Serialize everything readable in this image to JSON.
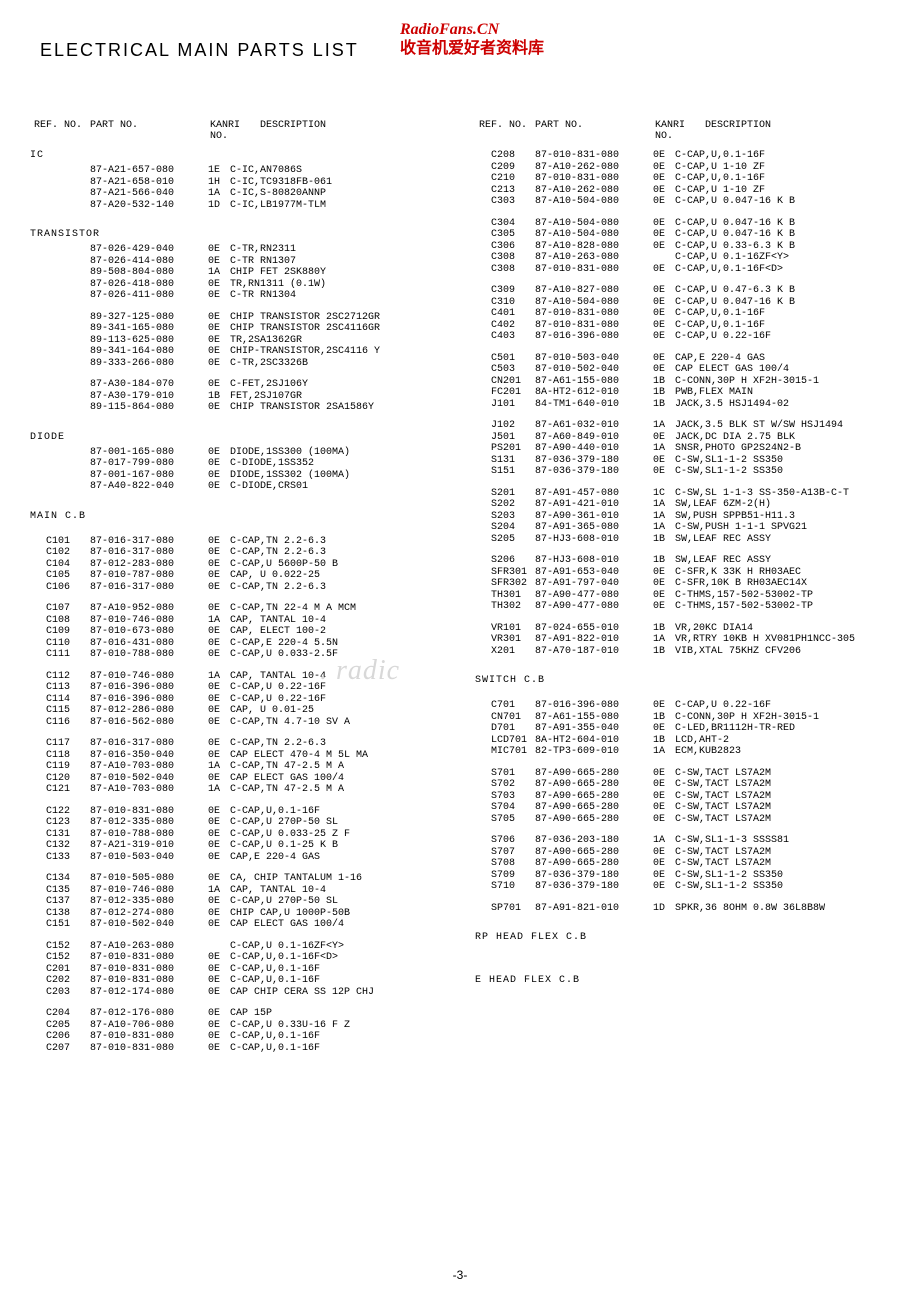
{
  "title": "ELECTRICAL MAIN PARTS LIST",
  "watermark": {
    "line1": "RadioFans.CN",
    "line2": "收音机爱好者资料库",
    "mid": ". radic"
  },
  "headers": {
    "ref": "REF. NO.",
    "part": "PART NO.",
    "kanri": "KANRI",
    "kanri2": "NO.",
    "desc": "DESCRIPTION"
  },
  "page": "-3-",
  "left": [
    {
      "type": "section",
      "label": "IC"
    },
    {
      "ref": "",
      "part": "87-A21-657-080",
      "kanri": "1E",
      "desc": "C-IC,AN7086S"
    },
    {
      "ref": "",
      "part": "87-A21-658-010",
      "kanri": "1H",
      "desc": "C-IC,TC9318FB-061"
    },
    {
      "ref": "",
      "part": "87-A21-566-040",
      "kanri": "1A",
      "desc": "C-IC,S-80820ANNP"
    },
    {
      "ref": "",
      "part": "87-A20-532-140",
      "kanri": "1D",
      "desc": "C-IC,LB1977M-TLM"
    },
    {
      "type": "gap"
    },
    {
      "type": "section",
      "label": "TRANSISTOR"
    },
    {
      "ref": "",
      "part": "87-026-429-040",
      "kanri": "0E",
      "desc": "C-TR,RN2311"
    },
    {
      "ref": "",
      "part": "87-026-414-080",
      "kanri": "0E",
      "desc": "C-TR RN1307"
    },
    {
      "ref": "",
      "part": "89-508-804-080",
      "kanri": "1A",
      "desc": "CHIP FET 2SK880Y"
    },
    {
      "ref": "",
      "part": "87-026-418-080",
      "kanri": "0E",
      "desc": "TR,RN1311 (0.1W)"
    },
    {
      "ref": "",
      "part": "87-026-411-080",
      "kanri": "0E",
      "desc": "C-TR RN1304"
    },
    {
      "type": "gap"
    },
    {
      "ref": "",
      "part": "89-327-125-080",
      "kanri": "0E",
      "desc": "CHIP TRANSISTOR 2SC2712GR"
    },
    {
      "ref": "",
      "part": "89-341-165-080",
      "kanri": "0E",
      "desc": "CHIP TRANSISTOR 2SC4116GR"
    },
    {
      "ref": "",
      "part": "89-113-625-080",
      "kanri": "0E",
      "desc": "TR,2SA1362GR"
    },
    {
      "ref": "",
      "part": "89-341-164-080",
      "kanri": "0E",
      "desc": "CHIP-TRANSISTOR,2SC4116 Y"
    },
    {
      "ref": "",
      "part": "89-333-266-080",
      "kanri": "0E",
      "desc": "C-TR,2SC3326B"
    },
    {
      "type": "gap"
    },
    {
      "ref": "",
      "part": "87-A30-184-070",
      "kanri": "0E",
      "desc": "C-FET,2SJ106Y"
    },
    {
      "ref": "",
      "part": "87-A30-179-010",
      "kanri": "1B",
      "desc": "FET,2SJ107GR"
    },
    {
      "ref": "",
      "part": "89-115-864-080",
      "kanri": "0E",
      "desc": "CHIP TRANSISTOR 2SA1586Y"
    },
    {
      "type": "gap"
    },
    {
      "type": "section",
      "label": "DIODE"
    },
    {
      "ref": "",
      "part": "87-001-165-080",
      "kanri": "0E",
      "desc": "DIODE,1SS300 (100MA)"
    },
    {
      "ref": "",
      "part": "87-017-799-080",
      "kanri": "0E",
      "desc": "C-DIODE,1SS352"
    },
    {
      "ref": "",
      "part": "87-001-167-080",
      "kanri": "0E",
      "desc": "DIODE,1SS302 (100MA)"
    },
    {
      "ref": "",
      "part": "87-A40-822-040",
      "kanri": "0E",
      "desc": "C-DIODE,CRS01"
    },
    {
      "type": "gap"
    },
    {
      "type": "section",
      "label": "MAIN C.B"
    },
    {
      "type": "gap"
    },
    {
      "ref": "C101",
      "part": "87-016-317-080",
      "kanri": "0E",
      "desc": "C-CAP,TN 2.2-6.3"
    },
    {
      "ref": "C102",
      "part": "87-016-317-080",
      "kanri": "0E",
      "desc": "C-CAP,TN 2.2-6.3"
    },
    {
      "ref": "C104",
      "part": "87-012-283-080",
      "kanri": "0E",
      "desc": "C-CAP,U 5600P-50 B"
    },
    {
      "ref": "C105",
      "part": "87-010-787-080",
      "kanri": "0E",
      "desc": "CAP, U 0.022-25"
    },
    {
      "ref": "C106",
      "part": "87-016-317-080",
      "kanri": "0E",
      "desc": "C-CAP,TN 2.2-6.3"
    },
    {
      "type": "gap"
    },
    {
      "ref": "C107",
      "part": "87-A10-952-080",
      "kanri": "0E",
      "desc": "C-CAP,TN 22-4 M A MCM"
    },
    {
      "ref": "C108",
      "part": "87-010-746-080",
      "kanri": "1A",
      "desc": "CAP, TANTAL 10-4"
    },
    {
      "ref": "C109",
      "part": "87-010-673-080",
      "kanri": "0E",
      "desc": "CAP, ELECT 100-2"
    },
    {
      "ref": "C110",
      "part": "87-016-431-080",
      "kanri": "0E",
      "desc": "C-CAP,E 220-4 5.5N"
    },
    {
      "ref": "C111",
      "part": "87-010-788-080",
      "kanri": "0E",
      "desc": "C-CAP,U 0.033-2.5F"
    },
    {
      "type": "gap"
    },
    {
      "ref": "C112",
      "part": "87-010-746-080",
      "kanri": "1A",
      "desc": "CAP, TANTAL 10-4"
    },
    {
      "ref": "C113",
      "part": "87-016-396-080",
      "kanri": "0E",
      "desc": "C-CAP,U 0.22-16F"
    },
    {
      "ref": "C114",
      "part": "87-016-396-080",
      "kanri": "0E",
      "desc": "C-CAP,U 0.22-16F"
    },
    {
      "ref": "C115",
      "part": "87-012-286-080",
      "kanri": "0E",
      "desc": "CAP, U 0.01-25"
    },
    {
      "ref": "C116",
      "part": "87-016-562-080",
      "kanri": "0E",
      "desc": "C-CAP,TN 4.7-10 SV A"
    },
    {
      "type": "gap"
    },
    {
      "ref": "C117",
      "part": "87-016-317-080",
      "kanri": "0E",
      "desc": "C-CAP,TN 2.2-6.3"
    },
    {
      "ref": "C118",
      "part": "87-016-350-040",
      "kanri": "0E",
      "desc": "CAP ELECT 470-4 M 5L MA"
    },
    {
      "ref": "C119",
      "part": "87-A10-703-080",
      "kanri": "1A",
      "desc": "C-CAP,TN 47-2.5 M A"
    },
    {
      "ref": "C120",
      "part": "87-010-502-040",
      "kanri": "0E",
      "desc": "CAP ELECT GAS 100/4"
    },
    {
      "ref": "C121",
      "part": "87-A10-703-080",
      "kanri": "1A",
      "desc": "C-CAP,TN 47-2.5 M A"
    },
    {
      "type": "gap"
    },
    {
      "ref": "C122",
      "part": "87-010-831-080",
      "kanri": "0E",
      "desc": "C-CAP,U,0.1-16F"
    },
    {
      "ref": "C123",
      "part": "87-012-335-080",
      "kanri": "0E",
      "desc": "C-CAP,U 270P-50 SL"
    },
    {
      "ref": "C131",
      "part": "87-010-788-080",
      "kanri": "0E",
      "desc": "C-CAP,U 0.033-25 Z F"
    },
    {
      "ref": "C132",
      "part": "87-A21-319-010",
      "kanri": "0E",
      "desc": "C-CAP,U 0.1-25 K B"
    },
    {
      "ref": "C133",
      "part": "87-010-503-040",
      "kanri": "0E",
      "desc": "CAP,E 220-4 GAS"
    },
    {
      "type": "gap"
    },
    {
      "ref": "C134",
      "part": "87-010-505-080",
      "kanri": "0E",
      "desc": "CA, CHIP TANTALUM 1-16"
    },
    {
      "ref": "C135",
      "part": "87-010-746-080",
      "kanri": "1A",
      "desc": "CAP, TANTAL 10-4"
    },
    {
      "ref": "C137",
      "part": "87-012-335-080",
      "kanri": "0E",
      "desc": "C-CAP,U 270P-50 SL"
    },
    {
      "ref": "C138",
      "part": "87-012-274-080",
      "kanri": "0E",
      "desc": "CHIP CAP,U 1000P-50B"
    },
    {
      "ref": "C151",
      "part": "87-010-502-040",
      "kanri": "0E",
      "desc": "CAP ELECT GAS 100/4"
    },
    {
      "type": "gap"
    },
    {
      "ref": "C152",
      "part": "87-A10-263-080",
      "kanri": "",
      "desc": "C-CAP,U 0.1-16ZF<Y>"
    },
    {
      "ref": "C152",
      "part": "87-010-831-080",
      "kanri": "0E",
      "desc": "C-CAP,U,0.1-16F<D>"
    },
    {
      "ref": "C201",
      "part": "87-010-831-080",
      "kanri": "0E",
      "desc": "C-CAP,U,0.1-16F"
    },
    {
      "ref": "C202",
      "part": "87-010-831-080",
      "kanri": "0E",
      "desc": "C-CAP,U,0.1-16F"
    },
    {
      "ref": "C203",
      "part": "87-012-174-080",
      "kanri": "0E",
      "desc": "CAP CHIP CERA SS 12P CHJ"
    },
    {
      "type": "gap"
    },
    {
      "ref": "C204",
      "part": "87-012-176-080",
      "kanri": "0E",
      "desc": "CAP 15P"
    },
    {
      "ref": "C205",
      "part": "87-A10-706-080",
      "kanri": "0E",
      "desc": "C-CAP,U 0.33U-16 F Z"
    },
    {
      "ref": "C206",
      "part": "87-010-831-080",
      "kanri": "0E",
      "desc": "C-CAP,U,0.1-16F"
    },
    {
      "ref": "C207",
      "part": "87-010-831-080",
      "kanri": "0E",
      "desc": "C-CAP,U,0.1-16F"
    }
  ],
  "right": [
    {
      "ref": "C208",
      "part": "87-010-831-080",
      "kanri": "0E",
      "desc": "C-CAP,U,0.1-16F"
    },
    {
      "ref": "C209",
      "part": "87-A10-262-080",
      "kanri": "0E",
      "desc": "C-CAP,U 1-10 ZF"
    },
    {
      "ref": "C210",
      "part": "87-010-831-080",
      "kanri": "0E",
      "desc": "C-CAP,U,0.1-16F"
    },
    {
      "ref": "C213",
      "part": "87-A10-262-080",
      "kanri": "0E",
      "desc": "C-CAP,U 1-10 ZF"
    },
    {
      "ref": "C303",
      "part": "87-A10-504-080",
      "kanri": "0E",
      "desc": "C-CAP,U 0.047-16 K B"
    },
    {
      "type": "gap"
    },
    {
      "ref": "C304",
      "part": "87-A10-504-080",
      "kanri": "0E",
      "desc": "C-CAP,U 0.047-16 K B"
    },
    {
      "ref": "C305",
      "part": "87-A10-504-080",
      "kanri": "0E",
      "desc": "C-CAP,U 0.047-16 K B"
    },
    {
      "ref": "C306",
      "part": "87-A10-828-080",
      "kanri": "0E",
      "desc": "C-CAP,U 0.33-6.3 K B"
    },
    {
      "ref": "C308",
      "part": "87-A10-263-080",
      "kanri": "",
      "desc": "C-CAP,U 0.1-16ZF<Y>"
    },
    {
      "ref": "C308",
      "part": "87-010-831-080",
      "kanri": "0E",
      "desc": "C-CAP,U,0.1-16F<D>"
    },
    {
      "type": "gap"
    },
    {
      "ref": "C309",
      "part": "87-A10-827-080",
      "kanri": "0E",
      "desc": "C-CAP,U 0.47-6.3 K B"
    },
    {
      "ref": "C310",
      "part": "87-A10-504-080",
      "kanri": "0E",
      "desc": "C-CAP,U 0.047-16 K B"
    },
    {
      "ref": "C401",
      "part": "87-010-831-080",
      "kanri": "0E",
      "desc": "C-CAP,U,0.1-16F"
    },
    {
      "ref": "C402",
      "part": "87-010-831-080",
      "kanri": "0E",
      "desc": "C-CAP,U,0.1-16F"
    },
    {
      "ref": "C403",
      "part": "87-016-396-080",
      "kanri": "0E",
      "desc": "C-CAP,U 0.22-16F"
    },
    {
      "type": "gap"
    },
    {
      "ref": "C501",
      "part": "87-010-503-040",
      "kanri": "0E",
      "desc": "CAP,E 220-4 GAS"
    },
    {
      "ref": "C503",
      "part": "87-010-502-040",
      "kanri": "0E",
      "desc": "CAP ELECT GAS 100/4"
    },
    {
      "ref": "CN201",
      "part": "87-A61-155-080",
      "kanri": "1B",
      "desc": "C-CONN,30P H XF2H-3015-1"
    },
    {
      "ref": "FC201",
      "part": "8A-HT2-612-010",
      "kanri": "1B",
      "desc": "PWB,FLEX MAIN"
    },
    {
      "ref": "J101",
      "part": "84-TM1-640-010",
      "kanri": "1B",
      "desc": "JACK,3.5 HSJ1494-02"
    },
    {
      "type": "gap"
    },
    {
      "ref": "J102",
      "part": "87-A61-032-010",
      "kanri": "1A",
      "desc": "JACK,3.5 BLK ST W/SW HSJ1494"
    },
    {
      "ref": "J501",
      "part": "87-A60-849-010",
      "kanri": "0E",
      "desc": "JACK,DC DIA 2.75 BLK"
    },
    {
      "ref": "PS201",
      "part": "87-A90-440-010",
      "kanri": "1A",
      "desc": "SNSR,PHOTO GP2S24N2-B"
    },
    {
      "ref": "S131",
      "part": "87-036-379-180",
      "kanri": "0E",
      "desc": "C-SW,SL1-1-2 SS350"
    },
    {
      "ref": "S151",
      "part": "87-036-379-180",
      "kanri": "0E",
      "desc": "C-SW,SL1-1-2 SS350"
    },
    {
      "type": "gap"
    },
    {
      "ref": "S201",
      "part": "87-A91-457-080",
      "kanri": "1C",
      "desc": "C-SW,SL 1-1-3 SS-350-A13B-C-T"
    },
    {
      "ref": "S202",
      "part": "87-A91-421-010",
      "kanri": "1A",
      "desc": "SW,LEAF 6ZM-2(H)"
    },
    {
      "ref": "S203",
      "part": "87-A90-361-010",
      "kanri": "1A",
      "desc": "SW,PUSH SPPB51-H11.3"
    },
    {
      "ref": "S204",
      "part": "87-A91-365-080",
      "kanri": "1A",
      "desc": "C-SW,PUSH 1-1-1 SPVG21"
    },
    {
      "ref": "S205",
      "part": "87-HJ3-608-010",
      "kanri": "1B",
      "desc": "SW,LEAF REC ASSY"
    },
    {
      "type": "gap"
    },
    {
      "ref": "S206",
      "part": "87-HJ3-608-010",
      "kanri": "1B",
      "desc": "SW,LEAF REC ASSY"
    },
    {
      "ref": "SFR301",
      "part": "87-A91-653-040",
      "kanri": "0E",
      "desc": "C-SFR,K 33K H RH03AEC"
    },
    {
      "ref": "SFR302",
      "part": "87-A91-797-040",
      "kanri": "0E",
      "desc": "C-SFR,10K B RH03AEC14X"
    },
    {
      "ref": "TH301",
      "part": "87-A90-477-080",
      "kanri": "0E",
      "desc": "C-THMS,157-502-53002-TP"
    },
    {
      "ref": "TH302",
      "part": "87-A90-477-080",
      "kanri": "0E",
      "desc": "C-THMS,157-502-53002-TP"
    },
    {
      "type": "gap"
    },
    {
      "ref": "VR101",
      "part": "87-024-655-010",
      "kanri": "1B",
      "desc": "VR,20KC DIA14"
    },
    {
      "ref": "VR301",
      "part": "87-A91-822-010",
      "kanri": "1A",
      "desc": "VR,RTRY 10KB H XV081PH1NCC-305"
    },
    {
      "ref": "X201",
      "part": "87-A70-187-010",
      "kanri": "1B",
      "desc": "VIB,XTAL 75KHZ CFV206"
    },
    {
      "type": "gap"
    },
    {
      "type": "section",
      "label": "SWITCH C.B"
    },
    {
      "type": "gap"
    },
    {
      "ref": "C701",
      "part": "87-016-396-080",
      "kanri": "0E",
      "desc": "C-CAP,U 0.22-16F"
    },
    {
      "ref": "CN701",
      "part": "87-A61-155-080",
      "kanri": "1B",
      "desc": "C-CONN,30P H XF2H-3015-1"
    },
    {
      "ref": "D701",
      "part": "87-A91-355-040",
      "kanri": "0E",
      "desc": "C-LED,BR1112H-TR-RED"
    },
    {
      "ref": "LCD701",
      "part": "8A-HT2-604-010",
      "kanri": "1B",
      "desc": "LCD,AHT-2"
    },
    {
      "ref": "MIC701",
      "part": "82-TP3-609-010",
      "kanri": "1A",
      "desc": "ECM,KUB2823"
    },
    {
      "type": "gap"
    },
    {
      "ref": "S701",
      "part": "87-A90-665-280",
      "kanri": "0E",
      "desc": "C-SW,TACT LS7A2M"
    },
    {
      "ref": "S702",
      "part": "87-A90-665-280",
      "kanri": "0E",
      "desc": "C-SW,TACT LS7A2M"
    },
    {
      "ref": "S703",
      "part": "87-A90-665-280",
      "kanri": "0E",
      "desc": "C-SW,TACT LS7A2M"
    },
    {
      "ref": "S704",
      "part": "87-A90-665-280",
      "kanri": "0E",
      "desc": "C-SW,TACT LS7A2M"
    },
    {
      "ref": "S705",
      "part": "87-A90-665-280",
      "kanri": "0E",
      "desc": "C-SW,TACT LS7A2M"
    },
    {
      "type": "gap"
    },
    {
      "ref": "S706",
      "part": "87-036-203-180",
      "kanri": "1A",
      "desc": "C-SW,SL1-1-3 SSSS81"
    },
    {
      "ref": "S707",
      "part": "87-A90-665-280",
      "kanri": "0E",
      "desc": "C-SW,TACT LS7A2M"
    },
    {
      "ref": "S708",
      "part": "87-A90-665-280",
      "kanri": "0E",
      "desc": "C-SW,TACT LS7A2M"
    },
    {
      "ref": "S709",
      "part": "87-036-379-180",
      "kanri": "0E",
      "desc": "C-SW,SL1-1-2 SS350"
    },
    {
      "ref": "S710",
      "part": "87-036-379-180",
      "kanri": "0E",
      "desc": "C-SW,SL1-1-2 SS350"
    },
    {
      "type": "gap"
    },
    {
      "ref": "SP701",
      "part": "87-A91-821-010",
      "kanri": "1D",
      "desc": "SPKR,36 8OHM 0.8W 36L8B8W"
    },
    {
      "type": "gap"
    },
    {
      "type": "section",
      "label": "RP HEAD FLEX C.B"
    },
    {
      "type": "gap"
    },
    {
      "type": "gap"
    },
    {
      "type": "section",
      "label": "E HEAD FLEX C.B"
    }
  ]
}
